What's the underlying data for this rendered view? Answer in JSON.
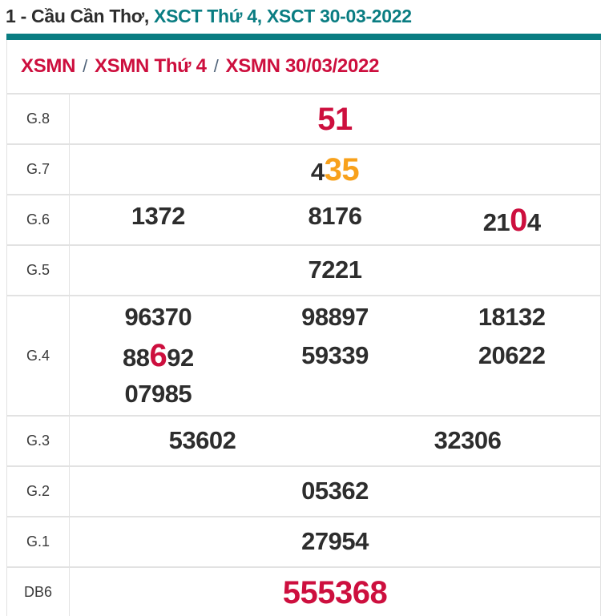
{
  "title": {
    "prefix": "1 - Cầu Cần Thơ, ",
    "highlight": "XSCT Thứ 4, XSCT 30-03-2022"
  },
  "breadcrumb": {
    "separator": "/",
    "items": [
      "XSMN",
      "XSMN Thứ 4",
      "XSMN 30/03/2022"
    ]
  },
  "colors": {
    "teal": "#0a7d82",
    "red": "#cd0f3e",
    "orange": "#f8a11b",
    "dark_text": "#2d2d2d",
    "border": "#e2e2e2",
    "separator_slash": "#51647a"
  },
  "results_table": {
    "rows": [
      {
        "label": "G.8",
        "lines": [
          [
            [
              {
                "text": "51",
                "style": "red"
              }
            ]
          ]
        ]
      },
      {
        "label": "G.7",
        "lines": [
          [
            [
              {
                "text": "4",
                "style": "normal"
              },
              {
                "text": "35",
                "style": "orange"
              }
            ]
          ]
        ]
      },
      {
        "label": "G.6",
        "lines": [
          [
            [
              {
                "text": "1372",
                "style": "normal"
              }
            ],
            [
              {
                "text": "8176",
                "style": "normal"
              }
            ],
            [
              {
                "text": "21",
                "style": "normal"
              },
              {
                "text": "0",
                "style": "red"
              },
              {
                "text": "4",
                "style": "normal"
              }
            ]
          ]
        ]
      },
      {
        "label": "G.5",
        "lines": [
          [
            [
              {
                "text": "7221",
                "style": "normal"
              }
            ]
          ]
        ]
      },
      {
        "label": "G.4",
        "lines": [
          [
            [
              {
                "text": "96370",
                "style": "normal"
              }
            ],
            [
              {
                "text": "98897",
                "style": "normal"
              }
            ],
            [
              {
                "text": "18132",
                "style": "normal"
              }
            ]
          ],
          [
            [
              {
                "text": "88",
                "style": "normal"
              },
              {
                "text": "6",
                "style": "red"
              },
              {
                "text": "92",
                "style": "normal"
              }
            ],
            [
              {
                "text": "59339",
                "style": "normal"
              }
            ],
            [
              {
                "text": "20622",
                "style": "normal"
              }
            ]
          ],
          [
            [
              {
                "text": "07985",
                "style": "normal"
              }
            ],
            [],
            []
          ]
        ]
      },
      {
        "label": "G.3",
        "lines": [
          [
            [
              {
                "text": "53602",
                "style": "normal"
              }
            ],
            [
              {
                "text": "32306",
                "style": "normal"
              }
            ]
          ]
        ]
      },
      {
        "label": "G.2",
        "lines": [
          [
            [
              {
                "text": "05362",
                "style": "normal"
              }
            ]
          ]
        ]
      },
      {
        "label": "G.1",
        "lines": [
          [
            [
              {
                "text": "27954",
                "style": "normal"
              }
            ]
          ]
        ]
      },
      {
        "label": "DB6",
        "lines": [
          [
            [
              {
                "text": "555368",
                "style": "red"
              }
            ]
          ]
        ]
      }
    ]
  }
}
